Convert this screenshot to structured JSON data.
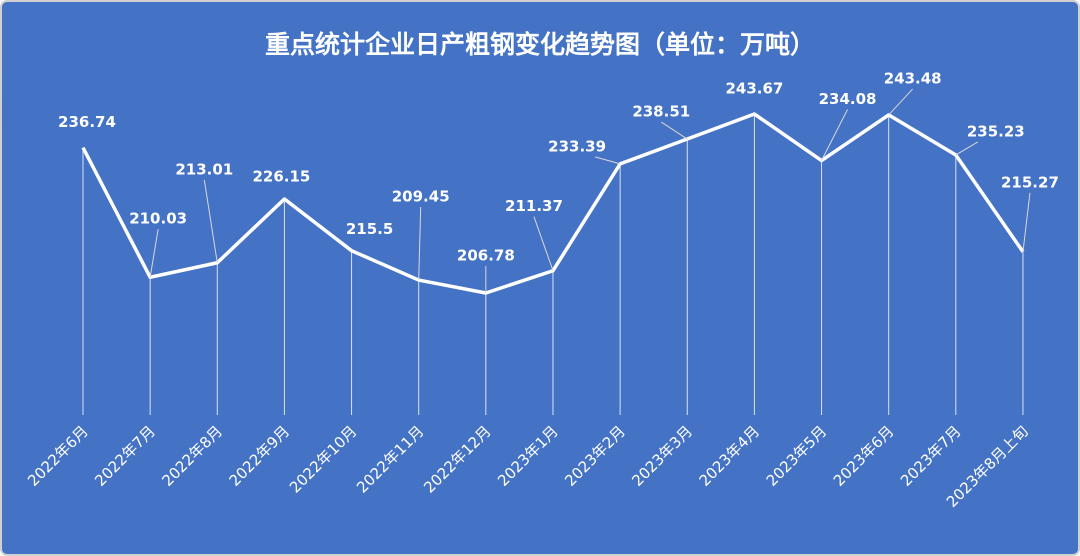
{
  "chart_data": {
    "type": "line",
    "title": "重点统计企业日产粗钢变化趋势图（单位：万吨）",
    "categories": [
      "2022年6月",
      "2022年7月",
      "2022年8月",
      "2022年9月",
      "2022年10月",
      "2022年11月",
      "2022年12月",
      "2023年1月",
      "2023年2月",
      "2023年3月",
      "2023年4月",
      "2023年5月",
      "2023年6月",
      "2023年7月",
      "2023年8月上旬"
    ],
    "values": [
      236.74,
      210.03,
      213.01,
      226.15,
      215.5,
      209.45,
      206.78,
      211.37,
      233.39,
      238.51,
      243.67,
      234.08,
      243.48,
      235.23,
      215.27
    ],
    "color": "#ffffff"
  }
}
